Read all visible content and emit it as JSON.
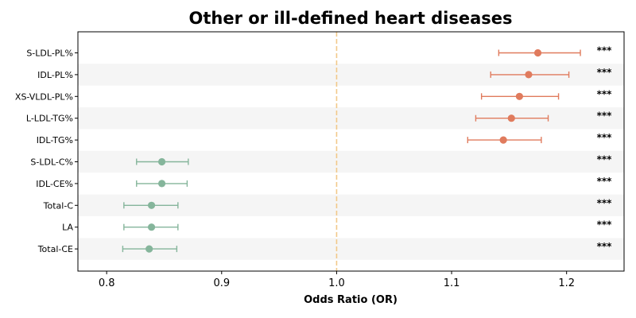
{
  "chart_data": {
    "type": "forest",
    "title": "Other or ill-defined heart diseases",
    "xlabel": "Odds Ratio (OR)",
    "xlim": [
      0.775,
      1.25
    ],
    "xticks": [
      0.8,
      0.9,
      1.0,
      1.1,
      1.2
    ],
    "xtick_labels": [
      "0.8",
      "0.9",
      "1.0",
      "1.1",
      "1.2"
    ],
    "reference_line": 1.0,
    "colors": {
      "positive": "#e07b5d",
      "negative": "#85b59b",
      "reference": "#f2c98a",
      "band": "#f5f5f5"
    },
    "rows": [
      {
        "label": "S-LDL-PL%",
        "or": 1.175,
        "ci_low": 1.141,
        "ci_high": 1.212,
        "sig": "***"
      },
      {
        "label": "IDL-PL%",
        "or": 1.167,
        "ci_low": 1.134,
        "ci_high": 1.202,
        "sig": "***"
      },
      {
        "label": "XS-VLDL-PL%",
        "or": 1.159,
        "ci_low": 1.126,
        "ci_high": 1.193,
        "sig": "***"
      },
      {
        "label": "L-LDL-TG%",
        "or": 1.152,
        "ci_low": 1.121,
        "ci_high": 1.184,
        "sig": "***"
      },
      {
        "label": "IDL-TG%",
        "or": 1.145,
        "ci_low": 1.114,
        "ci_high": 1.178,
        "sig": "***"
      },
      {
        "label": "S-LDL-C%",
        "or": 0.848,
        "ci_low": 0.826,
        "ci_high": 0.871,
        "sig": "***"
      },
      {
        "label": "IDL-CE%",
        "or": 0.848,
        "ci_low": 0.826,
        "ci_high": 0.87,
        "sig": "***"
      },
      {
        "label": "Total-C",
        "or": 0.839,
        "ci_low": 0.815,
        "ci_high": 0.862,
        "sig": "***"
      },
      {
        "label": "LA",
        "or": 0.839,
        "ci_low": 0.815,
        "ci_high": 0.862,
        "sig": "***"
      },
      {
        "label": "Total-CE",
        "or": 0.837,
        "ci_low": 0.814,
        "ci_high": 0.861,
        "sig": "***"
      }
    ]
  }
}
